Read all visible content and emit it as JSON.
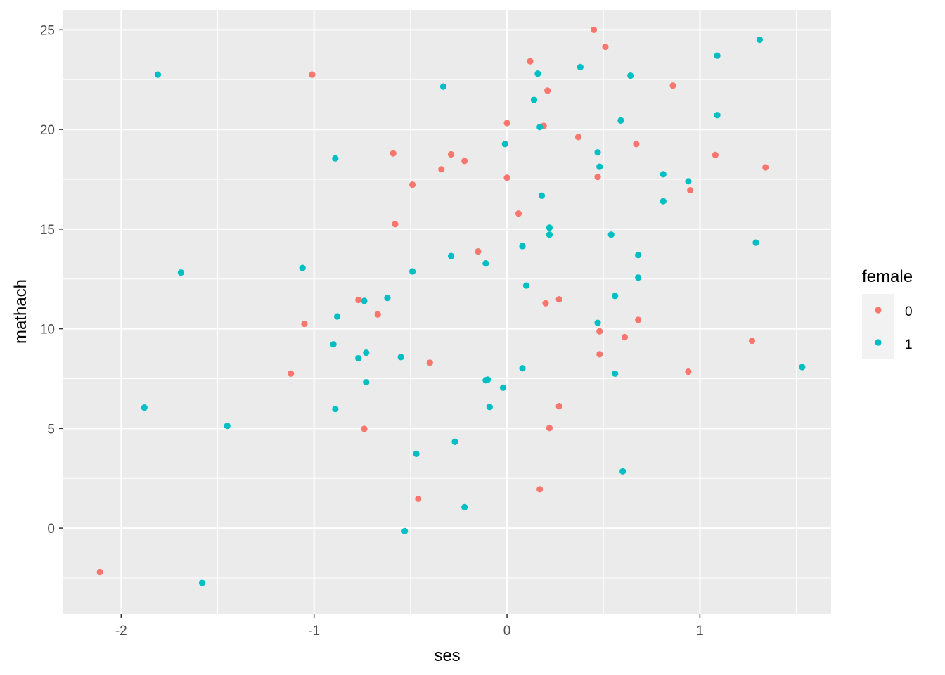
{
  "chart_data": {
    "type": "scatter",
    "xlabel": "ses",
    "ylabel": "mathach",
    "xlim": [
      -2.3,
      1.68
    ],
    "ylim": [
      -4.3,
      26.0
    ],
    "x_ticks": [
      -2,
      -1,
      0,
      1
    ],
    "x_tick_labels": [
      "-2",
      "-1",
      "0",
      "1"
    ],
    "y_ticks": [
      0,
      5,
      10,
      15,
      20,
      25
    ],
    "y_tick_labels": [
      "0",
      "5",
      "10",
      "15",
      "20",
      "25"
    ],
    "grid": true,
    "legend": {
      "title": "female",
      "position": "right",
      "entries": [
        {
          "label": "0",
          "color": "#F8766D"
        },
        {
          "label": "1",
          "color": "#00BFC4"
        }
      ]
    },
    "series": [
      {
        "name": "0",
        "color": "#F8766D",
        "points": [
          [
            -2.11,
            -2.2
          ],
          [
            -1.12,
            7.75
          ],
          [
            -1.05,
            10.25
          ],
          [
            -1.01,
            22.75
          ],
          [
            -0.77,
            11.45
          ],
          [
            -0.74,
            4.98
          ],
          [
            -0.67,
            10.72
          ],
          [
            -0.59,
            18.8
          ],
          [
            -0.58,
            15.25
          ],
          [
            -0.49,
            17.23
          ],
          [
            -0.46,
            1.47
          ],
          [
            -0.4,
            8.3
          ],
          [
            -0.34,
            18.0
          ],
          [
            -0.29,
            18.75
          ],
          [
            -0.22,
            18.42
          ],
          [
            -0.15,
            13.88
          ],
          [
            0.0,
            20.32
          ],
          [
            0.0,
            17.58
          ],
          [
            0.06,
            15.78
          ],
          [
            0.12,
            23.42
          ],
          [
            0.17,
            1.95
          ],
          [
            0.19,
            20.18
          ],
          [
            0.2,
            11.28
          ],
          [
            0.21,
            21.95
          ],
          [
            0.22,
            5.02
          ],
          [
            0.27,
            11.48
          ],
          [
            0.27,
            6.12
          ],
          [
            0.37,
            19.62
          ],
          [
            0.45,
            25.0
          ],
          [
            0.47,
            17.62
          ],
          [
            0.48,
            9.87
          ],
          [
            0.48,
            8.72
          ],
          [
            0.51,
            24.15
          ],
          [
            0.61,
            9.58
          ],
          [
            0.67,
            19.27
          ],
          [
            0.68,
            10.45
          ],
          [
            0.86,
            22.2
          ],
          [
            0.94,
            7.85
          ],
          [
            0.95,
            16.95
          ],
          [
            1.08,
            18.72
          ],
          [
            1.27,
            9.4
          ],
          [
            1.34,
            18.1
          ]
        ]
      },
      {
        "name": "1",
        "color": "#00BFC4",
        "points": [
          [
            -1.88,
            6.05
          ],
          [
            -1.81,
            22.75
          ],
          [
            -1.69,
            12.82
          ],
          [
            -1.58,
            -2.75
          ],
          [
            -1.45,
            5.13
          ],
          [
            -1.06,
            13.05
          ],
          [
            -0.9,
            9.22
          ],
          [
            -0.89,
            5.98
          ],
          [
            -0.89,
            18.55
          ],
          [
            -0.88,
            10.62
          ],
          [
            -0.77,
            8.52
          ],
          [
            -0.74,
            11.4
          ],
          [
            -0.73,
            8.8
          ],
          [
            -0.73,
            7.32
          ],
          [
            -0.62,
            11.55
          ],
          [
            -0.55,
            8.58
          ],
          [
            -0.53,
            -0.15
          ],
          [
            -0.49,
            12.88
          ],
          [
            -0.47,
            3.73
          ],
          [
            -0.33,
            22.15
          ],
          [
            -0.29,
            13.65
          ],
          [
            -0.27,
            4.33
          ],
          [
            -0.22,
            1.05
          ],
          [
            -0.11,
            13.28
          ],
          [
            -0.11,
            7.42
          ],
          [
            -0.1,
            7.45
          ],
          [
            -0.09,
            6.08
          ],
          [
            -0.02,
            7.05
          ],
          [
            -0.01,
            19.27
          ],
          [
            0.08,
            8.02
          ],
          [
            0.08,
            14.15
          ],
          [
            0.1,
            12.17
          ],
          [
            0.14,
            21.48
          ],
          [
            0.16,
            22.8
          ],
          [
            0.17,
            20.12
          ],
          [
            0.18,
            16.68
          ],
          [
            0.22,
            15.07
          ],
          [
            0.22,
            14.72
          ],
          [
            0.38,
            23.13
          ],
          [
            0.47,
            18.85
          ],
          [
            0.47,
            10.3
          ],
          [
            0.48,
            18.13
          ],
          [
            0.54,
            14.72
          ],
          [
            0.56,
            11.65
          ],
          [
            0.56,
            7.75
          ],
          [
            0.59,
            20.45
          ],
          [
            0.6,
            2.85
          ],
          [
            0.64,
            22.7
          ],
          [
            0.68,
            13.7
          ],
          [
            0.68,
            12.57
          ],
          [
            0.81,
            17.75
          ],
          [
            0.81,
            16.4
          ],
          [
            0.94,
            17.4
          ],
          [
            1.09,
            23.7
          ],
          [
            1.09,
            20.72
          ],
          [
            1.29,
            14.32
          ],
          [
            1.31,
            24.5
          ],
          [
            1.53,
            8.08
          ]
        ]
      }
    ]
  }
}
